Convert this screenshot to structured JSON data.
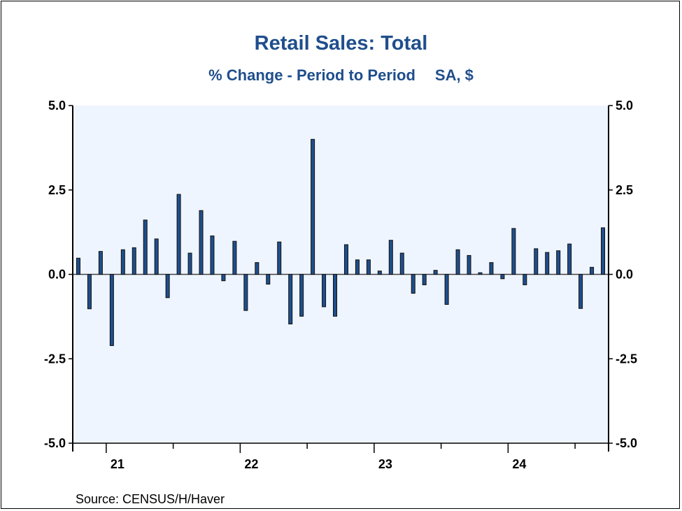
{
  "chart_data": {
    "type": "bar",
    "title": "Retail Sales: Total",
    "subtitle_left": "% Change - Period to Period",
    "subtitle_right": "SA, $",
    "source": "Source:   CENSUS/H/Haver",
    "xlabel": "",
    "ylabel": "",
    "ylim": [
      -5.0,
      5.0
    ],
    "yticks": [
      "5.0",
      "2.5",
      "0.0",
      "-2.5",
      "-5.0"
    ],
    "ytick_values": [
      5.0,
      2.5,
      0.0,
      -2.5,
      -5.0
    ],
    "xtick_labels": [
      "21",
      "22",
      "23",
      "24"
    ],
    "xtick_label_month_index": [
      3,
      15,
      27,
      39
    ],
    "periods": 48,
    "values": [
      0.48,
      -1.02,
      0.68,
      -2.11,
      0.73,
      0.79,
      1.61,
      1.05,
      -0.69,
      2.37,
      0.63,
      1.89,
      1.14,
      -0.19,
      0.98,
      -1.07,
      0.35,
      -0.29,
      0.96,
      -1.47,
      -1.24,
      4.0,
      -0.96,
      -1.24,
      0.88,
      0.43,
      0.43,
      0.1,
      1.01,
      0.63,
      -0.56,
      -0.31,
      0.12,
      -0.89,
      0.73,
      0.56,
      0.05,
      0.35,
      -0.13,
      1.36,
      -0.31,
      0.76,
      0.65,
      0.7,
      0.9,
      -1.01,
      0.21,
      1.38
    ],
    "colors": {
      "bar": "#1f4e8c",
      "plot_bg": "#eef5fe",
      "title": "#1f4e8c"
    },
    "grid": false
  }
}
